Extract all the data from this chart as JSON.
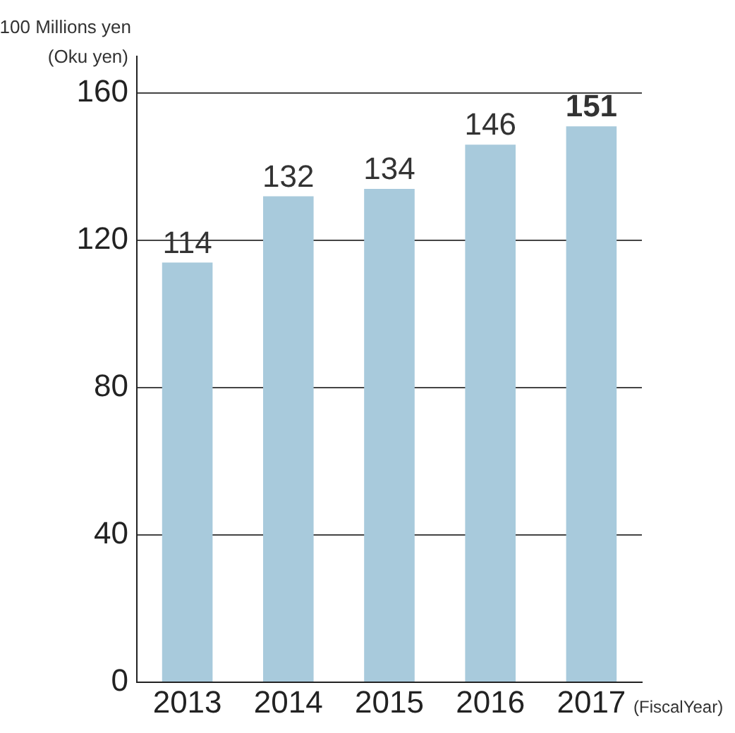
{
  "chart_data": {
    "type": "bar",
    "ylabel": "100 Millions yen\n(Oku yen)",
    "xlabel": "(FiscalYear)",
    "categories": [
      "2013",
      "2014",
      "2015",
      "2016",
      "2017"
    ],
    "values": [
      114,
      132,
      134,
      146,
      151
    ],
    "color": "#a8cadc",
    "ylim": [
      0,
      170
    ],
    "yticks": [
      0,
      40,
      80,
      120,
      160
    ],
    "grid": "y",
    "data_labels": true,
    "legend": false
  }
}
